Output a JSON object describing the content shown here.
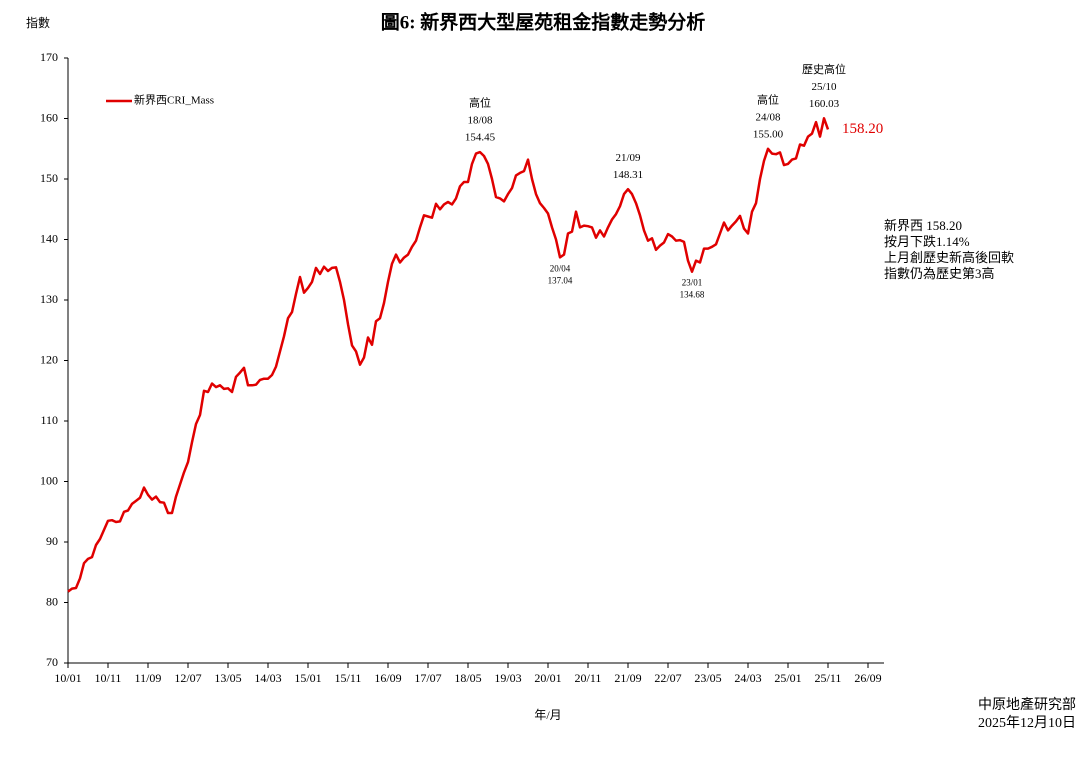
{
  "chart_data": {
    "type": "line",
    "title": "圖6: 新界西大型屋苑租金指數走勢分析",
    "y_label": "指數",
    "x_label": "年/月",
    "x": [
      "10/01",
      "10/02",
      "10/03",
      "10/04",
      "10/05",
      "10/06",
      "10/07",
      "10/08",
      "10/09",
      "10/10",
      "10/11",
      "10/12",
      "11/01",
      "11/02",
      "11/03",
      "11/04",
      "11/05",
      "11/06",
      "11/07",
      "11/08",
      "11/09",
      "11/10",
      "11/11",
      "11/12",
      "12/01",
      "12/02",
      "12/03",
      "12/04",
      "12/05",
      "12/06",
      "12/07",
      "12/08",
      "12/09",
      "12/10",
      "12/11",
      "12/12",
      "13/01",
      "13/02",
      "13/03",
      "13/04",
      "13/05",
      "13/06",
      "13/07",
      "13/08",
      "13/09",
      "13/10",
      "13/11",
      "13/12",
      "14/01",
      "14/02",
      "14/03",
      "14/04",
      "14/05",
      "14/06",
      "14/07",
      "14/08",
      "14/09",
      "14/10",
      "14/11",
      "14/12",
      "15/01",
      "15/02",
      "15/03",
      "15/04",
      "15/05",
      "15/06",
      "15/07",
      "15/08",
      "15/09",
      "15/10",
      "15/11",
      "15/12",
      "16/01",
      "16/02",
      "16/03",
      "16/04",
      "16/05",
      "16/06",
      "16/07",
      "16/08",
      "16/09",
      "16/10",
      "16/11",
      "16/12",
      "17/01",
      "17/02",
      "17/03",
      "17/04",
      "17/05",
      "17/06",
      "17/07",
      "17/08",
      "17/09",
      "17/10",
      "17/11",
      "17/12",
      "18/01",
      "18/02",
      "18/03",
      "18/04",
      "18/05",
      "18/06",
      "18/07",
      "18/08",
      "18/09",
      "18/10",
      "18/11",
      "18/12",
      "19/01",
      "19/02",
      "19/03",
      "19/04",
      "19/05",
      "19/06",
      "19/07",
      "19/08",
      "19/09",
      "19/10",
      "19/11",
      "19/12",
      "20/01",
      "20/02",
      "20/03",
      "20/04",
      "20/05",
      "20/06",
      "20/07",
      "20/08",
      "20/09",
      "20/10",
      "20/11",
      "20/12",
      "21/01",
      "21/02",
      "21/03",
      "21/04",
      "21/05",
      "21/06",
      "21/07",
      "21/08",
      "21/09",
      "21/10",
      "21/11",
      "21/12",
      "22/01",
      "22/02",
      "22/03",
      "22/04",
      "22/05",
      "22/06",
      "22/07",
      "22/08",
      "22/09",
      "22/10",
      "22/11",
      "22/12",
      "23/01",
      "23/02",
      "23/03",
      "23/04",
      "23/05",
      "23/06",
      "23/07",
      "23/08",
      "23/09",
      "23/10",
      "23/11",
      "23/12",
      "24/01",
      "24/02",
      "24/03",
      "24/04",
      "24/05",
      "24/06",
      "24/07",
      "24/08",
      "24/09",
      "24/10",
      "24/11",
      "24/12",
      "25/01",
      "25/02",
      "25/03",
      "25/04",
      "25/05",
      "25/06",
      "25/07",
      "25/08",
      "25/09",
      "25/10",
      "25/11"
    ],
    "series": [
      {
        "name": "新界西CRI_Mass",
        "color": "#e00000",
        "values": [
          81.8,
          82.3,
          82.4,
          84,
          86.5,
          87.2,
          87.5,
          89.5,
          90.5,
          92,
          93.5,
          93.6,
          93.3,
          93.4,
          95,
          95.2,
          96.3,
          96.8,
          97.3,
          99.0,
          97.8,
          97.0,
          97.5,
          96.6,
          96.5,
          94.8,
          94.8,
          97.5,
          99.5,
          101.5,
          103.2,
          106.5,
          109.5,
          111,
          115,
          114.8,
          116.2,
          115.6,
          115.9,
          115.3,
          115.4,
          114.8,
          117.3,
          118,
          118.8,
          115.9,
          115.9,
          116,
          116.8,
          117.0,
          117.0,
          117.6,
          119,
          121.5,
          124,
          127,
          128,
          131,
          133.8,
          131.2,
          132,
          133,
          135.3,
          134.3,
          135.5,
          134.8,
          135.3,
          135.4,
          133,
          130,
          126,
          122.5,
          121.5,
          119.3,
          120.5,
          123.8,
          122.6,
          126.5,
          127,
          129.5,
          133,
          136,
          137.5,
          136.2,
          137,
          137.5,
          138.8,
          139.8,
          142,
          144,
          143.8,
          143.6,
          145.9,
          145,
          145.8,
          146.2,
          145.8,
          146.8,
          148.8,
          149.5,
          149.5,
          152.5,
          154.2,
          154.45,
          153.8,
          152.5,
          150,
          147,
          146.8,
          146.3,
          147.5,
          148.5,
          150.6,
          151,
          151.3,
          153.2,
          150,
          147.5,
          146,
          145.2,
          144.3,
          142,
          140,
          137.04,
          137.5,
          141,
          141.3,
          144.6,
          142,
          142.3,
          142.2,
          142,
          140.3,
          141.5,
          140.5,
          142,
          143.3,
          144.2,
          145.5,
          147.5,
          148.31,
          147.5,
          146,
          144,
          141.5,
          139.8,
          140.2,
          138.3,
          139,
          139.5,
          140.9,
          140.5,
          139.8,
          139.9,
          139.6,
          136.5,
          134.68,
          136.5,
          136.2,
          138.5,
          138.5,
          138.8,
          139.2,
          141,
          142.8,
          141.5,
          142.3,
          143,
          143.9,
          141.8,
          141,
          144.6,
          146,
          150,
          153,
          155.0,
          154.2,
          154.1,
          154.4,
          152.3,
          152.5,
          153.2,
          153.4,
          155.7,
          155.5,
          157,
          157.5,
          159.4,
          157,
          160.03,
          158.2
        ]
      }
    ],
    "end_label": "158.20",
    "xlim": [
      "10/01",
      "26/09"
    ],
    "xticks": [
      "10/01",
      "10/11",
      "11/09",
      "12/07",
      "13/05",
      "14/03",
      "15/01",
      "15/11",
      "16/09",
      "17/07",
      "18/05",
      "19/03",
      "20/01",
      "20/11",
      "21/09",
      "22/07",
      "23/05",
      "24/03",
      "25/01",
      "25/11",
      "26/09"
    ],
    "ylim": [
      70,
      170
    ],
    "yticks": [
      70,
      80,
      90,
      100,
      110,
      120,
      130,
      140,
      150,
      160,
      170
    ],
    "grid": false,
    "legend": "top-left",
    "annotations": [
      {
        "x": "18/08",
        "lines": [
          "高位",
          "18/08",
          "154.45"
        ]
      },
      {
        "x": "20/04",
        "lines": [
          "20/04",
          "137.04"
        ]
      },
      {
        "x": "21/09",
        "lines": [
          "21/09",
          "148.31"
        ]
      },
      {
        "x": "23/01",
        "lines": [
          "23/01",
          "134.68"
        ]
      },
      {
        "x": "24/08",
        "lines": [
          "高位",
          "24/08",
          "155.00"
        ]
      },
      {
        "x": "25/10",
        "lines": [
          "歷史高位",
          "25/10",
          "160.03"
        ]
      }
    ],
    "note": [
      "新界西 158.20",
      "按月下跌1.14%",
      "上月創歷史新高後回軟",
      "指數仍為歷史第3高"
    ],
    "source": [
      "中原地產研究部",
      "2025年12月10日"
    ]
  }
}
